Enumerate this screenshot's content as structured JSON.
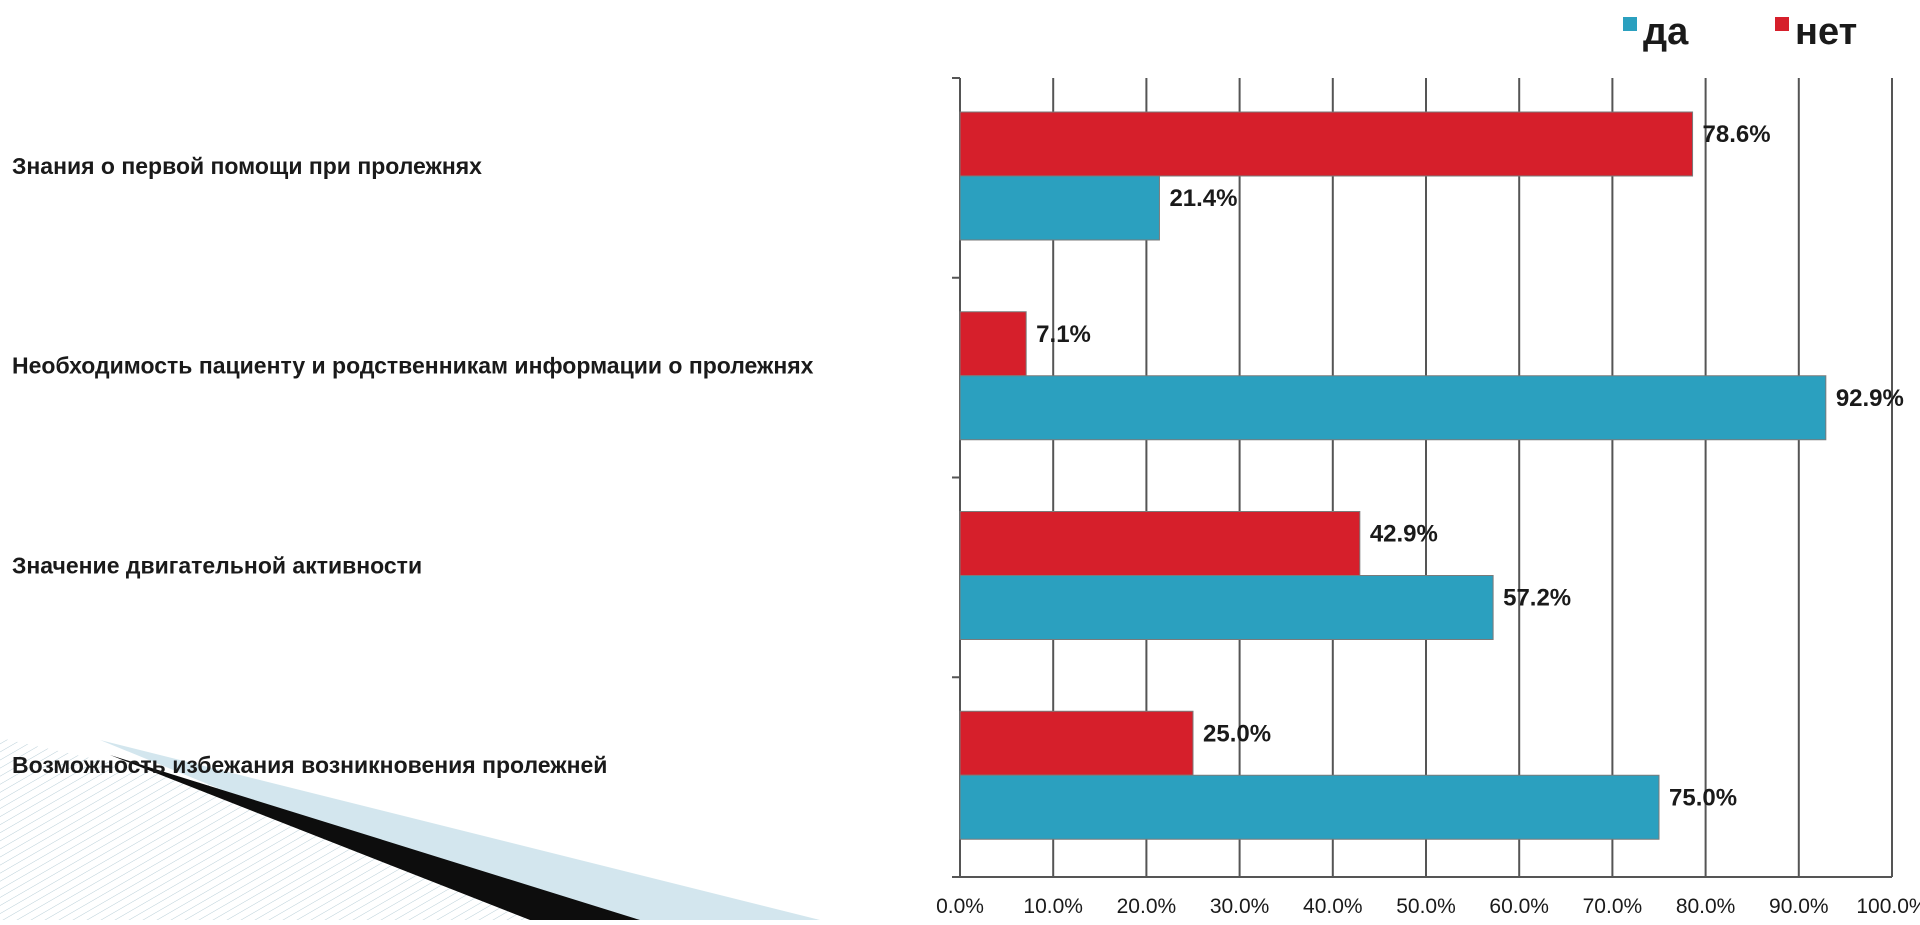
{
  "chart_data": {
    "type": "bar",
    "orientation": "horizontal",
    "title": "",
    "xlabel": "",
    "ylabel": "",
    "xlim": [
      0,
      100
    ],
    "x_ticks": [
      "0.0%",
      "10.0%",
      "20.0%",
      "30.0%",
      "40.0%",
      "50.0%",
      "60.0%",
      "70.0%",
      "80.0%",
      "90.0%",
      "100.0%"
    ],
    "grid": "vertical",
    "legend_position": "top-right",
    "categories": [
      "Знания о первой помощи при пролежнях",
      "Необходимость пациенту и родственникам информации о пролежнях",
      "Значение двигательной активности",
      "Возможность избежания возникновения пролежней"
    ],
    "series": [
      {
        "name": "нет",
        "color": "#d61f2b",
        "values": [
          78.6,
          7.1,
          42.9,
          25.0
        ],
        "labels": [
          "78.6%",
          "7.1%",
          "42.9%",
          "25.0%"
        ]
      },
      {
        "name": "да",
        "color": "#2ba0bf",
        "values": [
          21.4,
          92.9,
          57.2,
          75.0
        ],
        "labels": [
          "21.4%",
          "92.9%",
          "57.2%",
          "75.0%"
        ]
      }
    ]
  },
  "legend": [
    {
      "name": "да",
      "color": "#2ba0bf"
    },
    {
      "name": "нет",
      "color": "#d61f2b"
    }
  ]
}
